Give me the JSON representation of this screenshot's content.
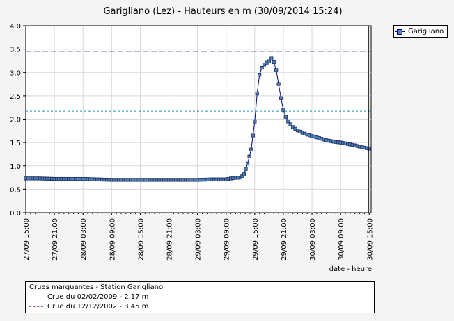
{
  "chart_data": {
    "type": "line",
    "title": "Garigliano (Lez) - Hauteurs en m (30/09/2014 15:24)",
    "xlabel": "date - heure",
    "ylabel": "",
    "ylim": [
      0,
      4.0
    ],
    "yticks": [
      "0.0",
      "0.5",
      "1.0",
      "1.5",
      "2.0",
      "2.5",
      "3.0",
      "3.5",
      "4.0"
    ],
    "xlim": [
      "2014-09-27 15:00",
      "2014-09-30 15:24"
    ],
    "xtick_labels": [
      "27/09 15:00",
      "27/09 21:00",
      "28/09 03:00",
      "28/09 09:00",
      "28/09 15:00",
      "28/09 21:00",
      "29/09 03:00",
      "29/09 09:00",
      "29/09 15:00",
      "29/09 21:00",
      "30/09 03:00",
      "30/09 09:00",
      "30/09 15:00"
    ],
    "grid": true,
    "legend_position": "top-right",
    "series": [
      {
        "name": "Garigliano",
        "color": "#000080",
        "marker_color": "#4f81bd",
        "points": [
          [
            "2014-09-27 15:00",
            0.73
          ],
          [
            "2014-09-27 18:00",
            0.73
          ],
          [
            "2014-09-27 21:00",
            0.72
          ],
          [
            "2014-09-28 00:00",
            0.72
          ],
          [
            "2014-09-28 03:00",
            0.72
          ],
          [
            "2014-09-28 06:00",
            0.71
          ],
          [
            "2014-09-28 09:00",
            0.7
          ],
          [
            "2014-09-28 12:00",
            0.7
          ],
          [
            "2014-09-28 15:00",
            0.7
          ],
          [
            "2014-09-28 18:00",
            0.7
          ],
          [
            "2014-09-28 21:00",
            0.7
          ],
          [
            "2014-09-29 00:00",
            0.7
          ],
          [
            "2014-09-29 03:00",
            0.7
          ],
          [
            "2014-09-29 06:00",
            0.71
          ],
          [
            "2014-09-29 09:00",
            0.71
          ],
          [
            "2014-09-29 10:30",
            0.74
          ],
          [
            "2014-09-29 12:00",
            0.75
          ],
          [
            "2014-09-29 12:45",
            0.82
          ],
          [
            "2014-09-29 13:30",
            1.05
          ],
          [
            "2014-09-29 14:15",
            1.35
          ],
          [
            "2014-09-29 15:00",
            1.95
          ],
          [
            "2014-09-29 15:30",
            2.55
          ],
          [
            "2014-09-29 16:00",
            2.95
          ],
          [
            "2014-09-29 16:30",
            3.1
          ],
          [
            "2014-09-29 17:00",
            3.17
          ],
          [
            "2014-09-29 17:30",
            3.21
          ],
          [
            "2014-09-29 18:00",
            3.24
          ],
          [
            "2014-09-29 18:30",
            3.3
          ],
          [
            "2014-09-29 19:00",
            3.22
          ],
          [
            "2014-09-29 19:30",
            3.05
          ],
          [
            "2014-09-29 20:00",
            2.75
          ],
          [
            "2014-09-29 20:30",
            2.45
          ],
          [
            "2014-09-29 21:00",
            2.2
          ],
          [
            "2014-09-29 21:30",
            2.05
          ],
          [
            "2014-09-29 22:00",
            1.95
          ],
          [
            "2014-09-29 23:00",
            1.83
          ],
          [
            "2014-09-30 00:00",
            1.76
          ],
          [
            "2014-09-30 01:00",
            1.71
          ],
          [
            "2014-09-30 02:00",
            1.67
          ],
          [
            "2014-09-30 03:00",
            1.64
          ],
          [
            "2014-09-30 04:00",
            1.61
          ],
          [
            "2014-09-30 05:00",
            1.58
          ],
          [
            "2014-09-30 06:00",
            1.55
          ],
          [
            "2014-09-30 07:30",
            1.52
          ],
          [
            "2014-09-30 09:00",
            1.5
          ],
          [
            "2014-09-30 10:30",
            1.47
          ],
          [
            "2014-09-30 12:00",
            1.44
          ],
          [
            "2014-09-30 13:30",
            1.4
          ],
          [
            "2014-09-30 15:00",
            1.37
          ]
        ]
      }
    ],
    "reference_lines": [
      {
        "label": "Crue du 02/02/2009 - 2.17 m",
        "value": 2.17,
        "style": "dotted",
        "color": "#1f8fc0"
      },
      {
        "label": "Crue du 12/12/2002 - 3.45 m",
        "value": 3.45,
        "style": "dashed",
        "color": "#8a5fa8"
      }
    ],
    "floods_legend_title": "Crues marquantes - Station Garigliano"
  }
}
